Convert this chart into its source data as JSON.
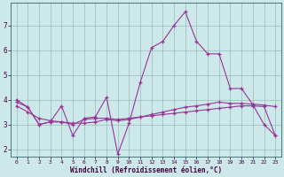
{
  "xlabel": "Windchill (Refroidissement éolien,°C)",
  "bg_color": "#cce8e8",
  "grid_color": "#99bbbb",
  "line_color": "#993399",
  "spine_color": "#336666",
  "x_ticks": [
    0,
    1,
    2,
    3,
    4,
    5,
    6,
    7,
    8,
    9,
    10,
    11,
    12,
    13,
    14,
    15,
    16,
    17,
    18,
    19,
    20,
    21,
    22,
    23
  ],
  "y_ticks": [
    2,
    3,
    4,
    5,
    6,
    7
  ],
  "ylim": [
    1.7,
    7.9
  ],
  "xlim": [
    -0.5,
    23.5
  ],
  "series1_x": [
    0,
    1,
    2,
    3,
    4,
    5,
    6,
    7,
    8,
    9,
    10,
    11,
    12,
    13,
    14,
    15,
    16,
    17,
    18,
    19,
    20,
    21,
    22,
    23
  ],
  "series1_y": [
    4.0,
    3.7,
    3.0,
    3.1,
    3.75,
    2.55,
    3.25,
    3.3,
    4.1,
    1.8,
    3.05,
    4.7,
    6.1,
    6.35,
    7.0,
    7.55,
    6.35,
    5.85,
    5.85,
    4.45,
    4.45,
    3.8,
    3.0,
    2.55
  ],
  "series2_x": [
    0,
    1,
    2,
    3,
    4,
    5,
    6,
    7,
    8,
    9,
    10,
    11,
    12,
    13,
    14,
    15,
    16,
    17,
    18,
    19,
    20,
    21,
    22,
    23
  ],
  "series2_y": [
    3.75,
    3.5,
    3.25,
    3.15,
    3.1,
    3.05,
    3.05,
    3.1,
    3.2,
    3.15,
    3.2,
    3.3,
    3.4,
    3.5,
    3.6,
    3.7,
    3.75,
    3.82,
    3.9,
    3.85,
    3.85,
    3.82,
    3.78,
    3.72
  ],
  "series3_x": [
    0,
    1,
    2,
    3,
    4,
    5,
    6,
    7,
    8,
    9,
    10,
    11,
    12,
    13,
    14,
    15,
    16,
    17,
    18,
    19,
    20,
    21,
    22,
    23
  ],
  "series3_y": [
    3.9,
    3.7,
    3.0,
    3.1,
    3.1,
    3.0,
    3.2,
    3.25,
    3.25,
    3.2,
    3.25,
    3.3,
    3.35,
    3.4,
    3.45,
    3.5,
    3.55,
    3.6,
    3.65,
    3.7,
    3.75,
    3.75,
    3.72,
    2.55
  ]
}
